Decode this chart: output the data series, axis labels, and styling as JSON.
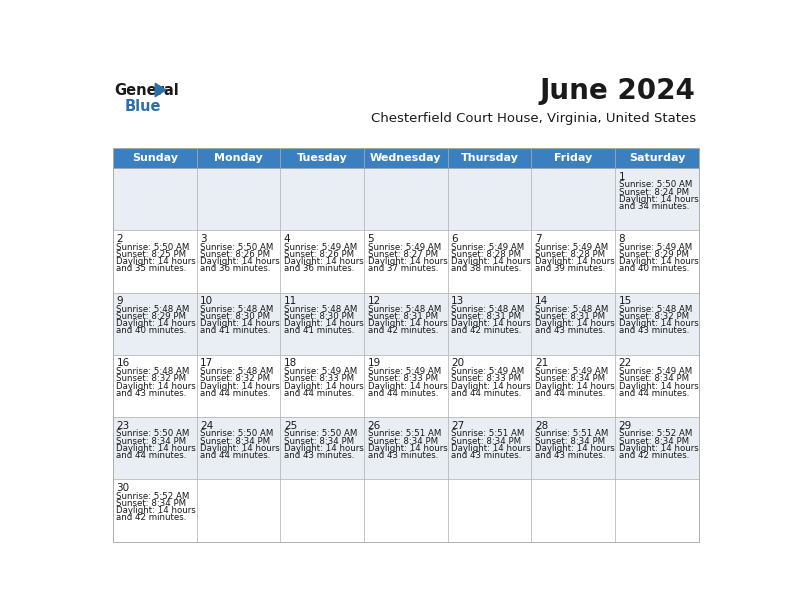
{
  "title": "June 2024",
  "subtitle": "Chesterfield Court House, Virginia, United States",
  "header_color": "#3a80c0",
  "header_text_color": "#ffffff",
  "cell_bg_even": "#e8eef4",
  "cell_bg_odd": "#ffffff",
  "border_color": "#aaaaaa",
  "day_names": [
    "Sunday",
    "Monday",
    "Tuesday",
    "Wednesday",
    "Thursday",
    "Friday",
    "Saturday"
  ],
  "calendar": [
    [
      null,
      null,
      null,
      null,
      null,
      null,
      {
        "day": "1",
        "sunrise": "5:50 AM",
        "sunset": "8:24 PM",
        "daylight": "14 hours and 34 minutes."
      }
    ],
    [
      {
        "day": "2",
        "sunrise": "5:50 AM",
        "sunset": "8:25 PM",
        "daylight": "14 hours and 35 minutes."
      },
      {
        "day": "3",
        "sunrise": "5:50 AM",
        "sunset": "8:26 PM",
        "daylight": "14 hours and 36 minutes."
      },
      {
        "day": "4",
        "sunrise": "5:49 AM",
        "sunset": "8:26 PM",
        "daylight": "14 hours and 36 minutes."
      },
      {
        "day": "5",
        "sunrise": "5:49 AM",
        "sunset": "8:27 PM",
        "daylight": "14 hours and 37 minutes."
      },
      {
        "day": "6",
        "sunrise": "5:49 AM",
        "sunset": "8:28 PM",
        "daylight": "14 hours and 38 minutes."
      },
      {
        "day": "7",
        "sunrise": "5:49 AM",
        "sunset": "8:28 PM",
        "daylight": "14 hours and 39 minutes."
      },
      {
        "day": "8",
        "sunrise": "5:49 AM",
        "sunset": "8:29 PM",
        "daylight": "14 hours and 40 minutes."
      }
    ],
    [
      {
        "day": "9",
        "sunrise": "5:48 AM",
        "sunset": "8:29 PM",
        "daylight": "14 hours and 40 minutes."
      },
      {
        "day": "10",
        "sunrise": "5:48 AM",
        "sunset": "8:30 PM",
        "daylight": "14 hours and 41 minutes."
      },
      {
        "day": "11",
        "sunrise": "5:48 AM",
        "sunset": "8:30 PM",
        "daylight": "14 hours and 41 minutes."
      },
      {
        "day": "12",
        "sunrise": "5:48 AM",
        "sunset": "8:31 PM",
        "daylight": "14 hours and 42 minutes."
      },
      {
        "day": "13",
        "sunrise": "5:48 AM",
        "sunset": "8:31 PM",
        "daylight": "14 hours and 42 minutes."
      },
      {
        "day": "14",
        "sunrise": "5:48 AM",
        "sunset": "8:31 PM",
        "daylight": "14 hours and 43 minutes."
      },
      {
        "day": "15",
        "sunrise": "5:48 AM",
        "sunset": "8:32 PM",
        "daylight": "14 hours and 43 minutes."
      }
    ],
    [
      {
        "day": "16",
        "sunrise": "5:48 AM",
        "sunset": "8:32 PM",
        "daylight": "14 hours and 43 minutes."
      },
      {
        "day": "17",
        "sunrise": "5:48 AM",
        "sunset": "8:32 PM",
        "daylight": "14 hours and 44 minutes."
      },
      {
        "day": "18",
        "sunrise": "5:49 AM",
        "sunset": "8:33 PM",
        "daylight": "14 hours and 44 minutes."
      },
      {
        "day": "19",
        "sunrise": "5:49 AM",
        "sunset": "8:33 PM",
        "daylight": "14 hours and 44 minutes."
      },
      {
        "day": "20",
        "sunrise": "5:49 AM",
        "sunset": "8:33 PM",
        "daylight": "14 hours and 44 minutes."
      },
      {
        "day": "21",
        "sunrise": "5:49 AM",
        "sunset": "8:34 PM",
        "daylight": "14 hours and 44 minutes."
      },
      {
        "day": "22",
        "sunrise": "5:49 AM",
        "sunset": "8:34 PM",
        "daylight": "14 hours and 44 minutes."
      }
    ],
    [
      {
        "day": "23",
        "sunrise": "5:50 AM",
        "sunset": "8:34 PM",
        "daylight": "14 hours and 44 minutes."
      },
      {
        "day": "24",
        "sunrise": "5:50 AM",
        "sunset": "8:34 PM",
        "daylight": "14 hours and 44 minutes."
      },
      {
        "day": "25",
        "sunrise": "5:50 AM",
        "sunset": "8:34 PM",
        "daylight": "14 hours and 43 minutes."
      },
      {
        "day": "26",
        "sunrise": "5:51 AM",
        "sunset": "8:34 PM",
        "daylight": "14 hours and 43 minutes."
      },
      {
        "day": "27",
        "sunrise": "5:51 AM",
        "sunset": "8:34 PM",
        "daylight": "14 hours and 43 minutes."
      },
      {
        "day": "28",
        "sunrise": "5:51 AM",
        "sunset": "8:34 PM",
        "daylight": "14 hours and 43 minutes."
      },
      {
        "day": "29",
        "sunrise": "5:52 AM",
        "sunset": "8:34 PM",
        "daylight": "14 hours and 42 minutes."
      }
    ],
    [
      {
        "day": "30",
        "sunrise": "5:52 AM",
        "sunset": "8:34 PM",
        "daylight": "14 hours and 42 minutes."
      },
      null,
      null,
      null,
      null,
      null,
      null
    ]
  ],
  "num_weeks": 6,
  "num_cols": 7,
  "fig_width": 7.92,
  "fig_height": 6.12,
  "dpi": 100
}
